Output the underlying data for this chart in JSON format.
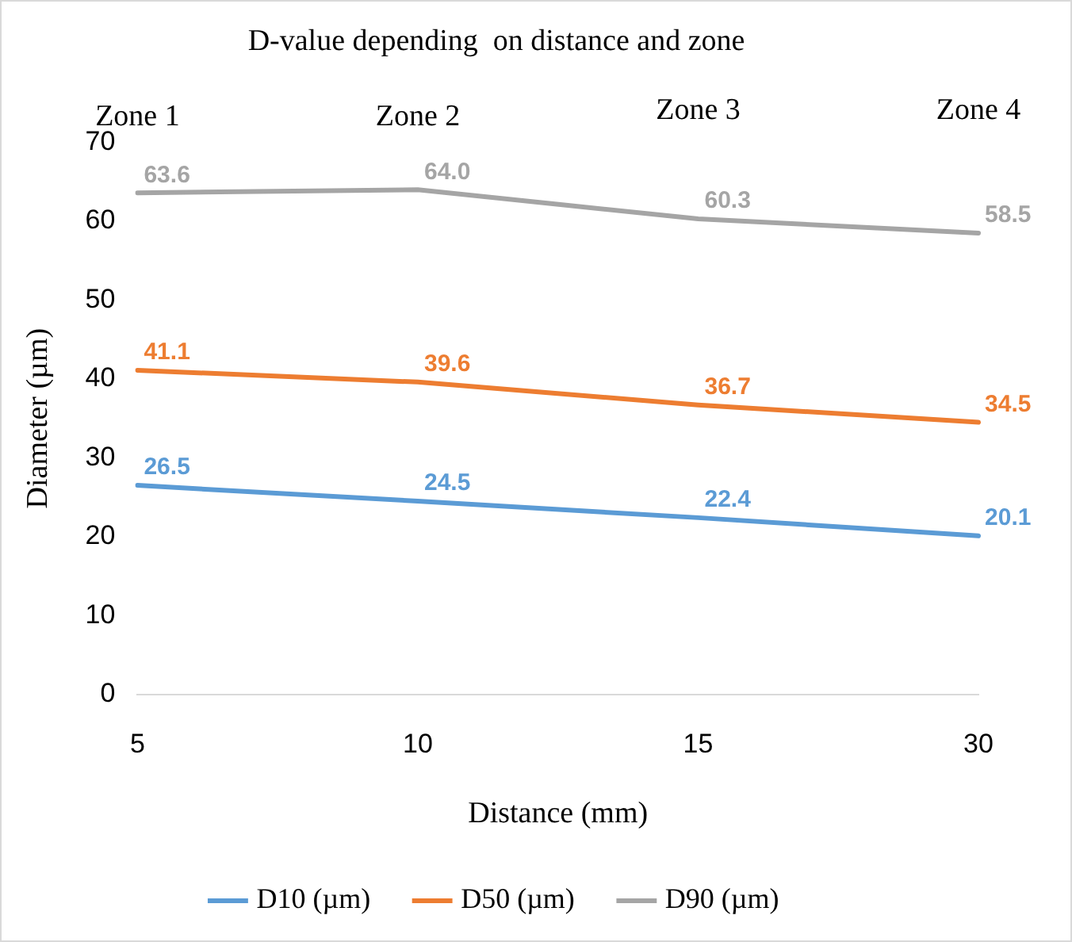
{
  "chart_data": {
    "type": "line",
    "title": "D-value depending  on distance and zone",
    "xlabel": "Distance (mm)",
    "ylabel": "Diameter (µm)",
    "categories": [
      "5",
      "10",
      "15",
      "30"
    ],
    "annotations": [
      "Zone 1",
      "Zone 2",
      "Zone 3",
      "Zone 4"
    ],
    "series": [
      {
        "name": "D10 (µm)",
        "color": "#5b9bd5",
        "values": [
          26.5,
          24.5,
          22.4,
          20.1
        ],
        "value_labels": [
          "26.5",
          "24.5",
          "22.4",
          "20.1"
        ]
      },
      {
        "name": "D50 (µm)",
        "color": "#ed7d31",
        "values": [
          41.1,
          39.6,
          36.7,
          34.5
        ],
        "value_labels": [
          "41.1",
          "39.6",
          "36.7",
          "34.5"
        ]
      },
      {
        "name": "D90 (µm)",
        "color": "#a5a5a5",
        "values": [
          63.6,
          64.0,
          60.3,
          58.5
        ],
        "value_labels": [
          "63.6",
          "64.0",
          "60.3",
          "58.5"
        ]
      }
    ],
    "ylim": [
      0,
      70
    ],
    "yticks": [
      0,
      10,
      20,
      30,
      40,
      50,
      60,
      70
    ],
    "grid": false,
    "legend": "bottom",
    "line_style": "solid"
  }
}
